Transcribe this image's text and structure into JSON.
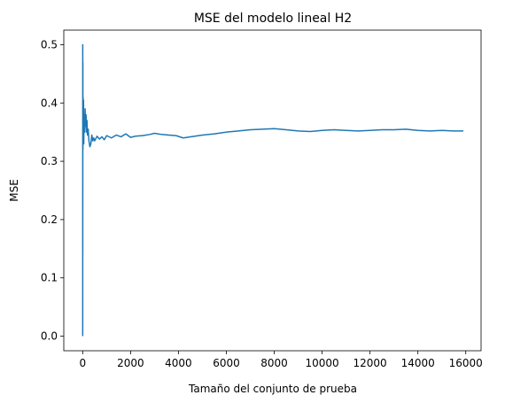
{
  "chart_data": {
    "type": "line",
    "title": "MSE del modelo lineal H2",
    "xlabel": "Tamaño del conjunto de prueba",
    "ylabel": "MSE",
    "xlim": [
      -790,
      16640
    ],
    "ylim": [
      -0.025,
      0.525
    ],
    "xticks": [
      0,
      2000,
      4000,
      6000,
      8000,
      10000,
      12000,
      14000,
      16000
    ],
    "yticks": [
      0.0,
      0.1,
      0.2,
      0.3,
      0.4,
      0.5
    ],
    "xtick_labels": [
      "0",
      "2000",
      "4000",
      "6000",
      "8000",
      "10000",
      "12000",
      "14000",
      "16000"
    ],
    "ytick_labels": [
      "0.0",
      "0.1",
      "0.2",
      "0.3",
      "0.4",
      "0.5"
    ],
    "grid": false,
    "line_color": "#1f77b4",
    "series": [
      {
        "x": [
          1,
          2,
          3,
          5,
          8,
          10,
          14,
          18,
          22,
          28,
          35,
          45,
          55,
          70,
          85,
          100,
          120,
          140,
          160,
          180,
          200,
          230,
          260,
          300,
          340,
          380,
          420,
          460,
          500,
          600,
          700,
          800,
          900,
          1000,
          1200,
          1400,
          1600,
          1800,
          2000,
          2200,
          2500,
          2800,
          3000,
          3300,
          3600,
          3900,
          4200,
          4500,
          5000,
          5500,
          6000,
          6500,
          7000,
          7500,
          8000,
          8500,
          9000,
          9500,
          10000,
          10500,
          11000,
          11500,
          12000,
          12500,
          13000,
          13500,
          14000,
          14500,
          15000,
          15500,
          15900
        ],
        "y": [
          0.0,
          0.5,
          0.14,
          0.43,
          0.47,
          0.32,
          0.41,
          0.35,
          0.39,
          0.36,
          0.405,
          0.33,
          0.38,
          0.37,
          0.35,
          0.39,
          0.36,
          0.38,
          0.35,
          0.37,
          0.345,
          0.355,
          0.335,
          0.325,
          0.33,
          0.345,
          0.335,
          0.34,
          0.335,
          0.343,
          0.338,
          0.342,
          0.337,
          0.344,
          0.34,
          0.345,
          0.342,
          0.347,
          0.341,
          0.343,
          0.344,
          0.346,
          0.348,
          0.346,
          0.345,
          0.344,
          0.34,
          0.342,
          0.345,
          0.347,
          0.35,
          0.352,
          0.354,
          0.355,
          0.356,
          0.354,
          0.352,
          0.351,
          0.353,
          0.354,
          0.353,
          0.352,
          0.353,
          0.354,
          0.354,
          0.355,
          0.353,
          0.352,
          0.353,
          0.352,
          0.352
        ]
      }
    ]
  }
}
